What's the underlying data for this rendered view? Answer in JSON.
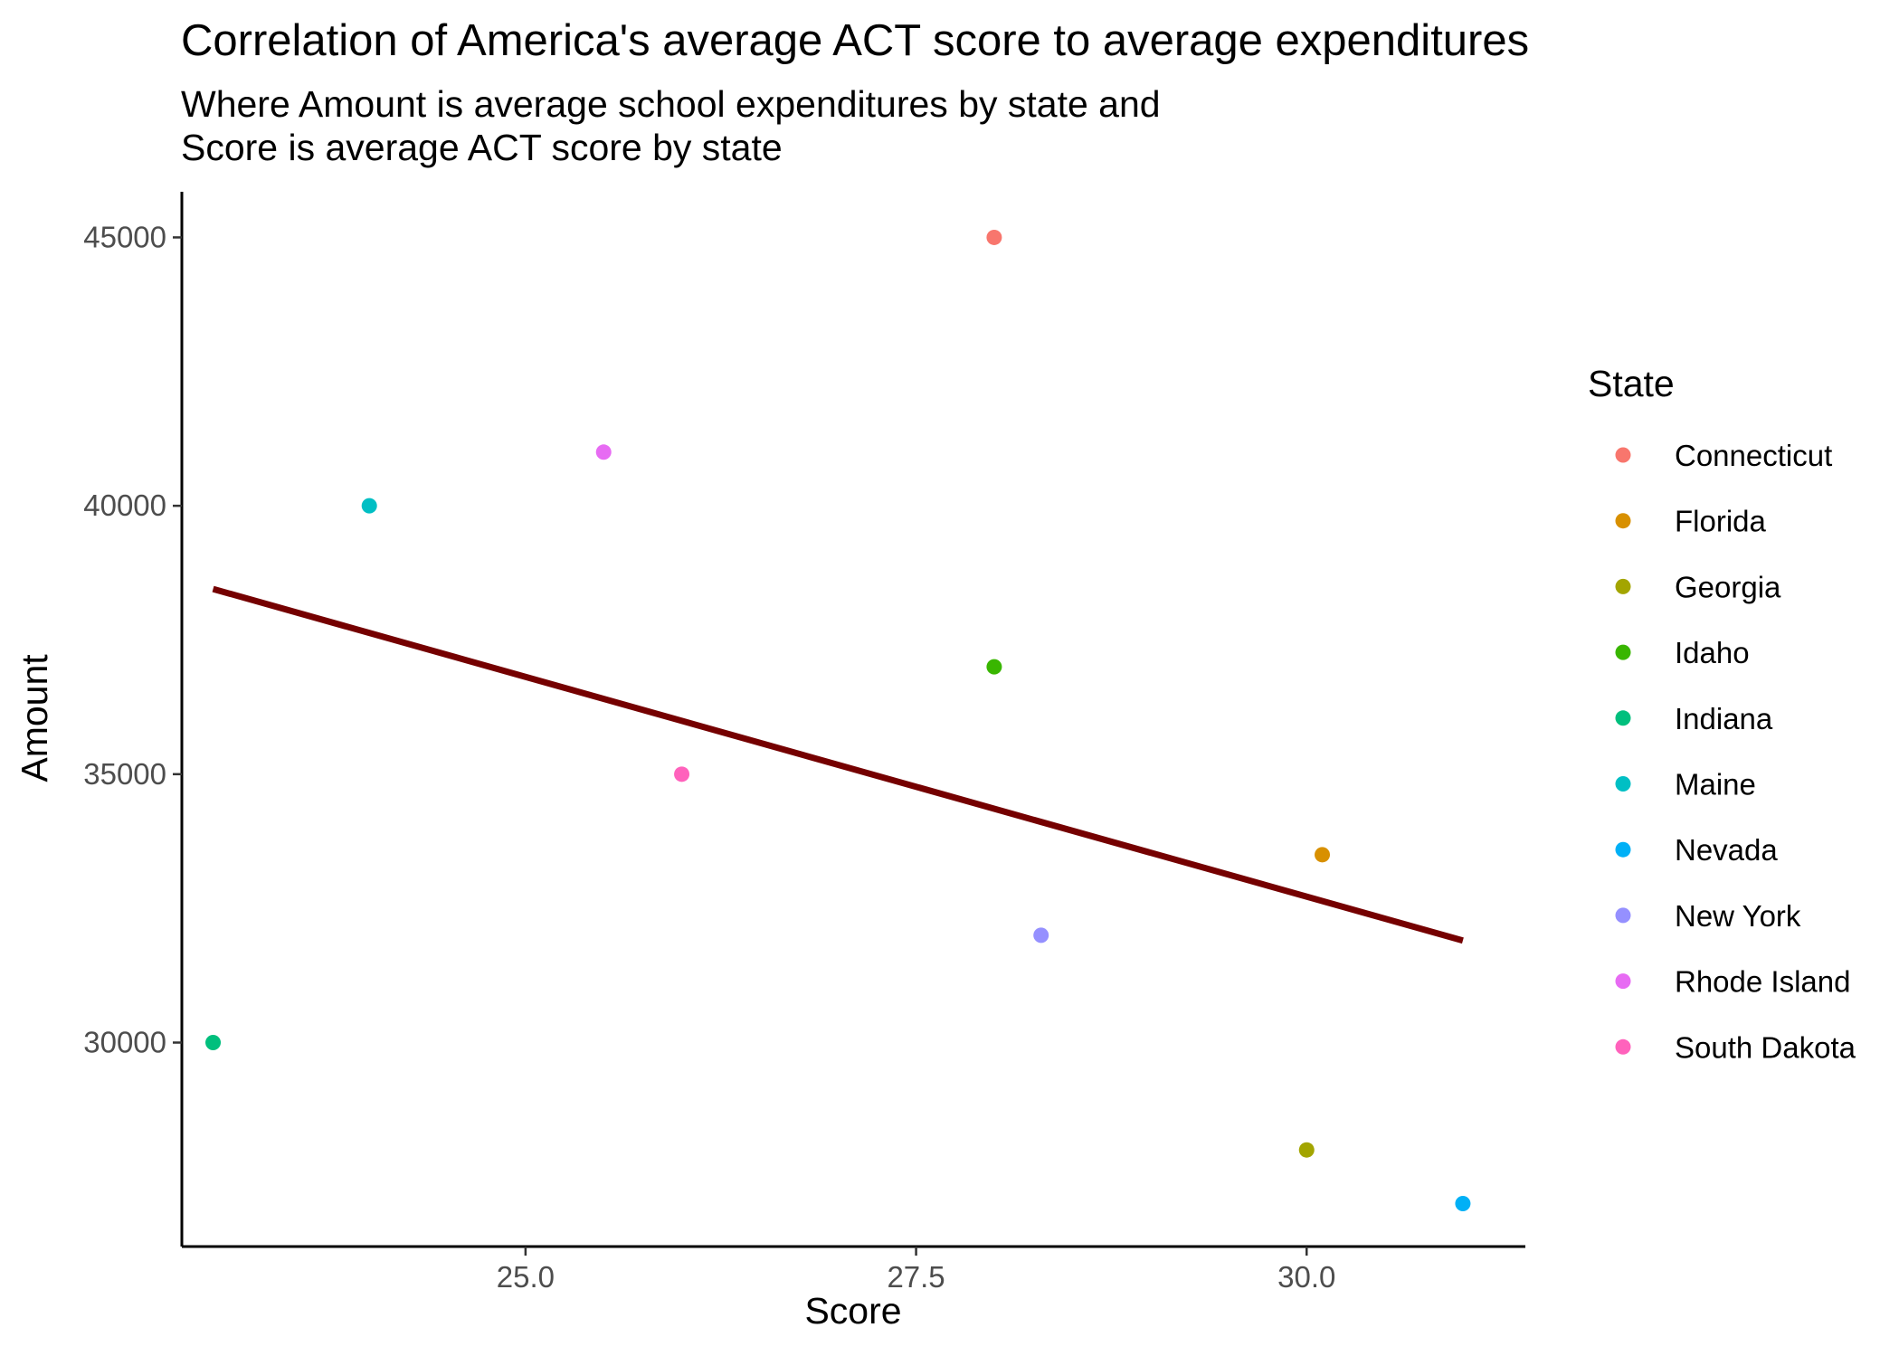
{
  "chart_data": {
    "type": "scatter",
    "title": "Correlation of America's average ACT score to average expenditures",
    "subtitle_lines": [
      "Where Amount is average school expenditures by state and",
      "Score is average ACT score by state"
    ],
    "xlabel": "Score",
    "ylabel": "Amount",
    "x_ticks": [
      "25.0",
      "27.5",
      "30.0"
    ],
    "y_ticks": [
      "30000",
      "35000",
      "40000",
      "45000"
    ],
    "xlim": [
      22.8,
      31.4
    ],
    "ylim": [
      26200,
      45850
    ],
    "grid": false,
    "legend": {
      "title": "State",
      "position": "right"
    },
    "series": [
      {
        "name": "Connecticut",
        "color": "#F8766D",
        "x": 28.0,
        "y": 45000
      },
      {
        "name": "Florida",
        "color": "#D89000",
        "x": 30.1,
        "y": 33500
      },
      {
        "name": "Georgia",
        "color": "#A3A500",
        "x": 30.0,
        "y": 28000
      },
      {
        "name": "Idaho",
        "color": "#39B600",
        "x": 28.0,
        "y": 37000
      },
      {
        "name": "Indiana",
        "color": "#00BF7D",
        "x": 23.0,
        "y": 30000
      },
      {
        "name": "Maine",
        "color": "#00BFC4",
        "x": 24.0,
        "y": 40000
      },
      {
        "name": "Nevada",
        "color": "#00B0F6",
        "x": 31.0,
        "y": 27000
      },
      {
        "name": "New York",
        "color": "#9590FF",
        "x": 28.3,
        "y": 32000
      },
      {
        "name": "Rhode Island",
        "color": "#E76BF3",
        "x": 25.5,
        "y": 41000
      },
      {
        "name": "South Dakota",
        "color": "#FF62BC",
        "x": 26.0,
        "y": 35000
      }
    ],
    "trend_line": {
      "color": "#750000",
      "x": [
        23.0,
        31.0
      ],
      "y": [
        38450,
        31900
      ]
    }
  }
}
